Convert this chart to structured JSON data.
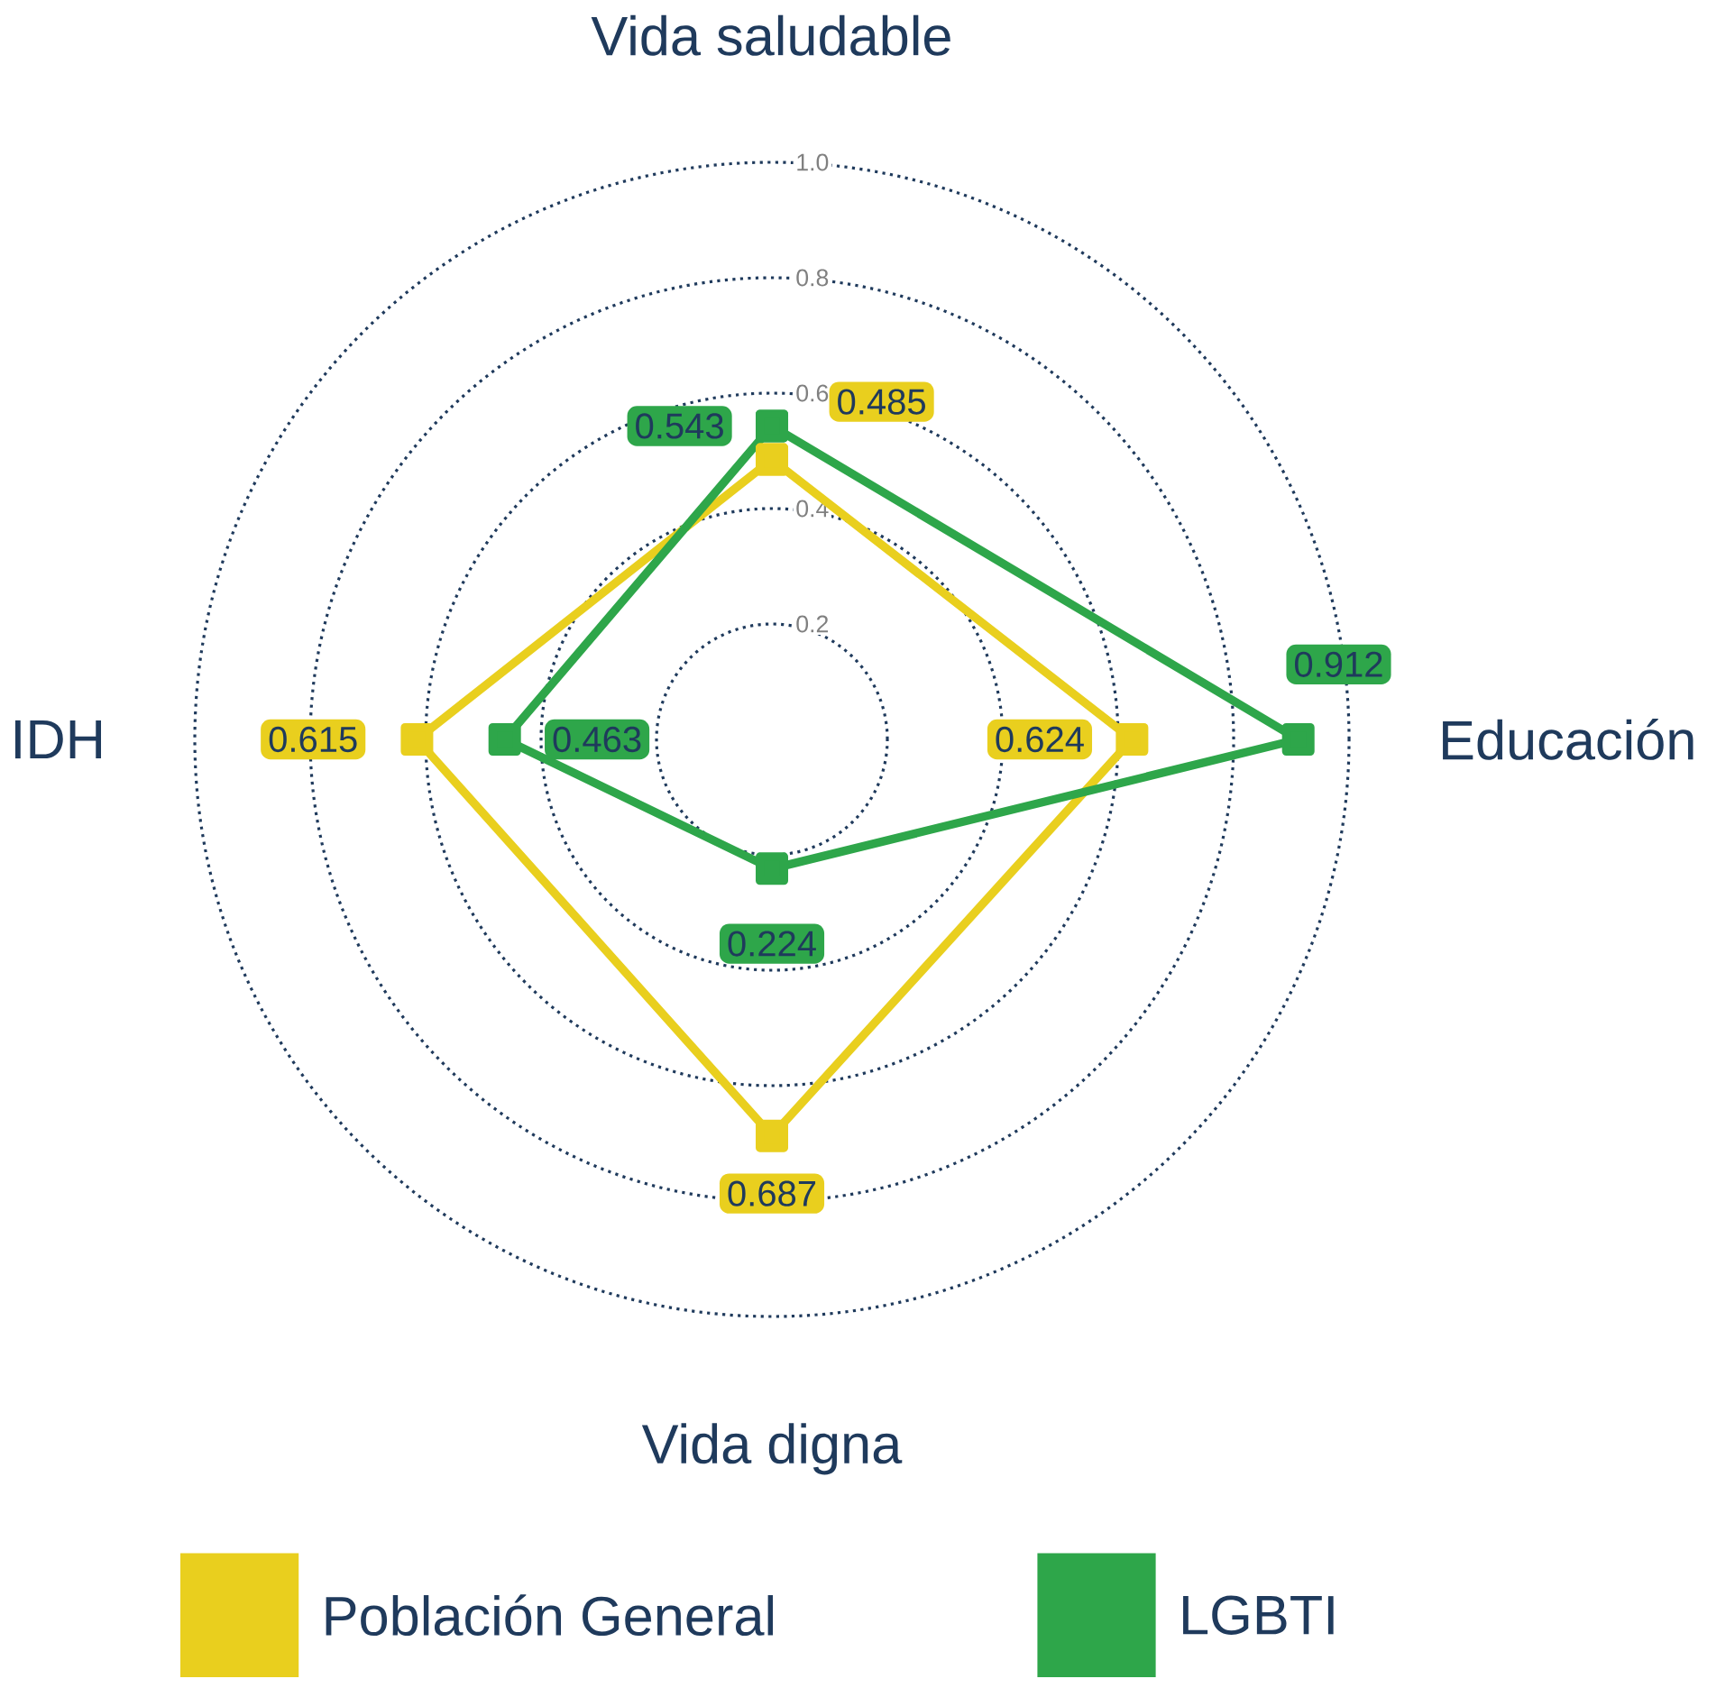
{
  "chart_data": {
    "type": "radar",
    "categories": [
      "Vida saludable",
      "Educación",
      "Vida digna",
      "IDH"
    ],
    "series": [
      {
        "name": "Población General",
        "color": "#e9cf1e",
        "values": [
          0.485,
          0.624,
          0.687,
          0.615
        ]
      },
      {
        "name": "LGBTI",
        "color": "#2ea64a",
        "values": [
          0.543,
          0.912,
          0.224,
          0.463
        ]
      }
    ],
    "ylim": [
      0,
      1.0
    ],
    "yticks": [
      0.2,
      0.4,
      0.6,
      0.8,
      {
        "value": 1.0,
        "label": "1.0"
      }
    ],
    "grid": true,
    "legend": "bottom",
    "marker": "square",
    "data_labels": true
  }
}
